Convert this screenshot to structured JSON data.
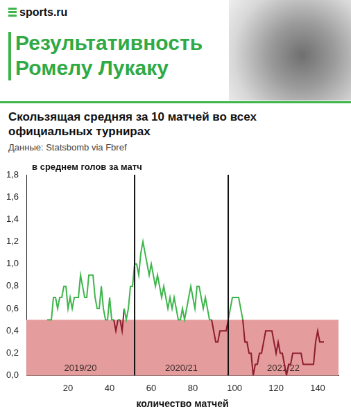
{
  "logo": "sports.ru",
  "chart_data": {
    "type": "line",
    "title": "Результативность Ромелу Лукаку",
    "subtitle": "Скользящая средняя за 10 матчей во всех официальных турнирах",
    "source": "Данные: Statsbomb via Fbref",
    "x_label": "количество матчей",
    "y_label": "в среднем голов за матч",
    "x": [
      10,
      11,
      12,
      13,
      14,
      15,
      16,
      17,
      18,
      19,
      20,
      21,
      22,
      23,
      24,
      25,
      26,
      27,
      28,
      29,
      30,
      31,
      32,
      33,
      34,
      35,
      36,
      37,
      38,
      39,
      40,
      41,
      42,
      43,
      44,
      45,
      46,
      47,
      48,
      49,
      50,
      51,
      52,
      53,
      54,
      55,
      56,
      57,
      58,
      59,
      60,
      61,
      62,
      63,
      64,
      65,
      66,
      67,
      68,
      69,
      70,
      71,
      72,
      73,
      74,
      75,
      76,
      77,
      78,
      79,
      80,
      81,
      82,
      83,
      84,
      85,
      86,
      87,
      88,
      89,
      90,
      91,
      92,
      93,
      94,
      95,
      96,
      97,
      98,
      99,
      100,
      101,
      102,
      103,
      104,
      105,
      106,
      107,
      108,
      109,
      110,
      111,
      112,
      113,
      114,
      115,
      116,
      117,
      118,
      119,
      120,
      121,
      122,
      123,
      124,
      125,
      126,
      127,
      128,
      129,
      130,
      131,
      132,
      133,
      134,
      135,
      136,
      137,
      138,
      139,
      140,
      141,
      142,
      143
    ],
    "series": [
      {
        "values": [
          0.5,
          0.5,
          0.5,
          0.7,
          0.7,
          0.6,
          0.7,
          0.7,
          0.8,
          0.8,
          0.6,
          0.7,
          0.6,
          0.7,
          0.7,
          0.7,
          0.9,
          0.8,
          0.7,
          0.7,
          0.9,
          0.9,
          0.9,
          0.7,
          0.6,
          0.6,
          0.8,
          0.6,
          0.5,
          0.5,
          0.7,
          0.5,
          0.5,
          0.4,
          0.5,
          0.5,
          0.4,
          0.6,
          0.5,
          0.6,
          0.8,
          0.8,
          1.0,
          1.0,
          0.9,
          1.1,
          1.2,
          1.1,
          1.0,
          0.9,
          1.0,
          0.9,
          0.8,
          0.9,
          0.8,
          0.7,
          0.8,
          0.7,
          0.6,
          0.7,
          0.6,
          0.7,
          0.6,
          0.5,
          0.5,
          0.6,
          0.5,
          0.6,
          0.7,
          0.8,
          0.7,
          0.6,
          0.8,
          0.8,
          0.7,
          0.6,
          0.7,
          0.6,
          0.5,
          0.5,
          0.4,
          0.3,
          0.3,
          0.4,
          0.4,
          0.4,
          0.4,
          0.5,
          0.6,
          0.7,
          0.7,
          0.7,
          0.7,
          0.6,
          0.5,
          0.3,
          0.3,
          0.2,
          0.2,
          0.0,
          0.1,
          0.1,
          0.2,
          0.2,
          0.3,
          0.4,
          0.4,
          0.4,
          0.4,
          0.3,
          0.2,
          0.3,
          0.2,
          0.2,
          0.1,
          0.0,
          0.1,
          0.1,
          0.2,
          0.2,
          0.2,
          0.2,
          0.2,
          0.1,
          0.1,
          0.1,
          0.1,
          0.1,
          0.1,
          0.3,
          0.4,
          0.3,
          0.3,
          0.3
        ],
        "colors": [
          "#3db54a",
          "#3db54a",
          "#3db54a",
          "#3db54a",
          "#3db54a",
          "#3db54a",
          "#3db54a",
          "#3db54a",
          "#3db54a",
          "#3db54a",
          "#3db54a",
          "#3db54a",
          "#3db54a",
          "#3db54a",
          "#3db54a",
          "#3db54a",
          "#3db54a",
          "#3db54a",
          "#3db54a",
          "#3db54a",
          "#3db54a",
          "#3db54a",
          "#3db54a",
          "#3db54a",
          "#3db54a",
          "#3db54a",
          "#3db54a",
          "#3db54a",
          "#3db54a",
          "#3db54a",
          "#3db54a",
          "#3db54a",
          "#3db54a",
          "#8c1c2e",
          "#3db54a",
          "#3db54a",
          "#8c1c2e",
          "#3db54a",
          "#3db54a",
          "#3db54a",
          "#3db54a",
          "#3db54a",
          "#3db54a",
          "#3db54a",
          "#3db54a",
          "#3db54a",
          "#3db54a",
          "#3db54a",
          "#3db54a",
          "#3db54a",
          "#3db54a",
          "#3db54a",
          "#3db54a",
          "#3db54a",
          "#3db54a",
          "#3db54a",
          "#3db54a",
          "#3db54a",
          "#3db54a",
          "#3db54a",
          "#3db54a",
          "#3db54a",
          "#3db54a",
          "#3db54a",
          "#3db54a",
          "#3db54a",
          "#3db54a",
          "#3db54a",
          "#3db54a",
          "#3db54a",
          "#3db54a",
          "#3db54a",
          "#3db54a",
          "#3db54a",
          "#3db54a",
          "#3db54a",
          "#3db54a",
          "#3db54a",
          "#3db54a",
          "#3db54a",
          "#8c1c2e",
          "#8c1c2e",
          "#8c1c2e",
          "#8c1c2e",
          "#8c1c2e",
          "#8c1c2e",
          "#8c1c2e",
          "#3db54a",
          "#3db54a",
          "#3db54a",
          "#3db54a",
          "#3db54a",
          "#3db54a",
          "#3db54a",
          "#3db54a",
          "#8c1c2e",
          "#8c1c2e",
          "#8c1c2e",
          "#8c1c2e",
          "#8c1c2e",
          "#8c1c2e",
          "#8c1c2e",
          "#8c1c2e",
          "#8c1c2e",
          "#8c1c2e",
          "#8c1c2e",
          "#8c1c2e",
          "#8c1c2e",
          "#8c1c2e",
          "#8c1c2e",
          "#8c1c2e",
          "#8c1c2e",
          "#8c1c2e",
          "#8c1c2e",
          "#8c1c2e",
          "#8c1c2e",
          "#8c1c2e",
          "#8c1c2e",
          "#8c1c2e",
          "#8c1c2e",
          "#8c1c2e",
          "#8c1c2e",
          "#8c1c2e",
          "#8c1c2e",
          "#8c1c2e",
          "#8c1c2e",
          "#8c1c2e",
          "#8c1c2e",
          "#8c1c2e",
          "#8c1c2e",
          "#8c1c2e",
          "#8c1c2e",
          "#8c1c2e",
          "#8c1c2e"
        ]
      }
    ],
    "band": [
      0,
      0.5
    ],
    "season_breaks": [
      52,
      97
    ],
    "season_labels": [
      "2019/20",
      "2020/21",
      "2021/22"
    ],
    "xlim": [
      0,
      150
    ],
    "xticks": [
      20,
      40,
      60,
      80,
      100,
      120,
      140
    ],
    "ylim": [
      0,
      1.8
    ],
    "yticks": [
      {
        "value": 0,
        "label": "0,0"
      },
      {
        "value": 0.2,
        "label": "0,2"
      },
      {
        "value": 0.4,
        "label": "0,4"
      },
      {
        "value": 0.6,
        "label": "0,6"
      },
      {
        "value": 0.8,
        "label": "0,8"
      },
      {
        "value": 1.0,
        "label": "1,0"
      },
      {
        "value": 1.2,
        "label": "1,2"
      },
      {
        "value": 1.4,
        "label": "1,4"
      },
      {
        "value": 1.6,
        "label": "1,6"
      },
      {
        "value": 1.8,
        "label": "1,8"
      }
    ],
    "grid": false
  }
}
